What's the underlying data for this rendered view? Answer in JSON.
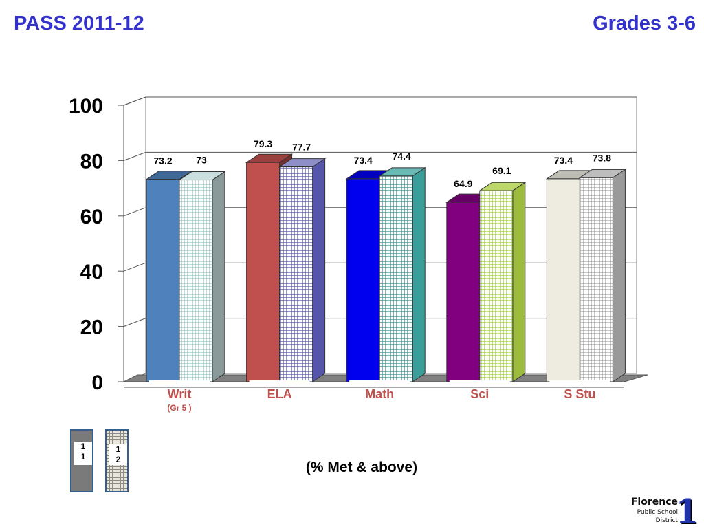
{
  "header": {
    "title": "PASS 2011-12",
    "grades": "Grades 3-6"
  },
  "chart_data": {
    "type": "bar",
    "categories": [
      "Writ",
      "ELA",
      "Math",
      "Sci",
      "S Stu"
    ],
    "category_sublabels": [
      "(Gr 5 )",
      "",
      "",
      "",
      ""
    ],
    "series": [
      {
        "name": "11",
        "values": [
          73.2,
          79.3,
          73.4,
          64.9,
          73.4
        ]
      },
      {
        "name": "12",
        "values": [
          73,
          77.7,
          74.4,
          69.1,
          73.8
        ]
      }
    ],
    "ylim": [
      0,
      100
    ],
    "yticks": [
      "0",
      "20",
      "40",
      "60",
      "80",
      "100"
    ],
    "grid": true,
    "style": "3d",
    "colors": {
      "series1": [
        "#4f81bd",
        "#c0504d",
        "#0000ee",
        "#800080",
        "#eeece1"
      ],
      "series2": [
        "#d6eeee",
        "#b3b3e6",
        "#7fc9c6",
        "#d6ee7a",
        "#d9d9d9"
      ],
      "category_label": [
        "#c0504d",
        "#c0504d",
        "#c0504d",
        "#c0504d",
        "#c0504d"
      ]
    },
    "footnote": "(% Met & above)"
  },
  "legend": {
    "items": [
      {
        "label_line1": "1",
        "label_line2": "1"
      },
      {
        "label_line1": "1",
        "label_line2": "2"
      }
    ]
  },
  "logo": {
    "name": "Florence",
    "line2": "Public School",
    "line3": "District",
    "number": "1"
  }
}
